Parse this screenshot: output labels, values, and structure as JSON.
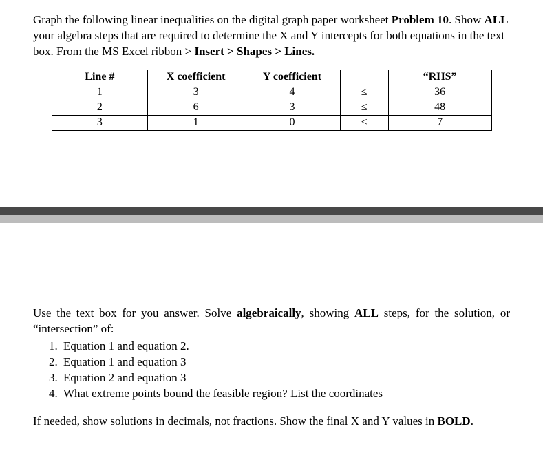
{
  "intro": {
    "text_a": "Graph the following linear inequalities on the digital graph paper worksheet ",
    "problem_label": "Problem 10",
    "text_b": ".  Show ",
    "all_label": "ALL",
    "text_c": " your algebra steps that are required to determine the X and Y intercepts for both equations in the text box.  From the MS Excel ribbon > ",
    "path": "Insert > Shapes > Lines."
  },
  "table": {
    "headers": {
      "line": "Line #",
      "xcoef": "X coefficient",
      "ycoef": "Y coefficient",
      "op": "",
      "rhs": "“RHS”"
    },
    "rows": [
      {
        "line": "1",
        "x": "3",
        "y": "4",
        "op": "≤",
        "rhs": "36"
      },
      {
        "line": "2",
        "x": "6",
        "y": "3",
        "op": "≤",
        "rhs": "48"
      },
      {
        "line": "3",
        "x": "1",
        "y": "0",
        "op": "≤",
        "rhs": "7"
      }
    ]
  },
  "solve": {
    "lead_a": "Use the text box for you answer.  Solve ",
    "alg": "algebraically",
    "lead_b": ", showing ",
    "all": "ALL",
    "lead_c": " steps, for the solution, or “intersection” of:",
    "items": [
      "Equation 1 and equation 2.",
      "Equation 1 and equation 3",
      "Equation 2 and equation 3",
      "What extreme points bound the feasible region? List the coordinates"
    ],
    "foot_a": "If needed, show solutions in decimals, not fractions.  Show the final X and Y values in ",
    "bold_word": "BOLD",
    "foot_b": "."
  }
}
